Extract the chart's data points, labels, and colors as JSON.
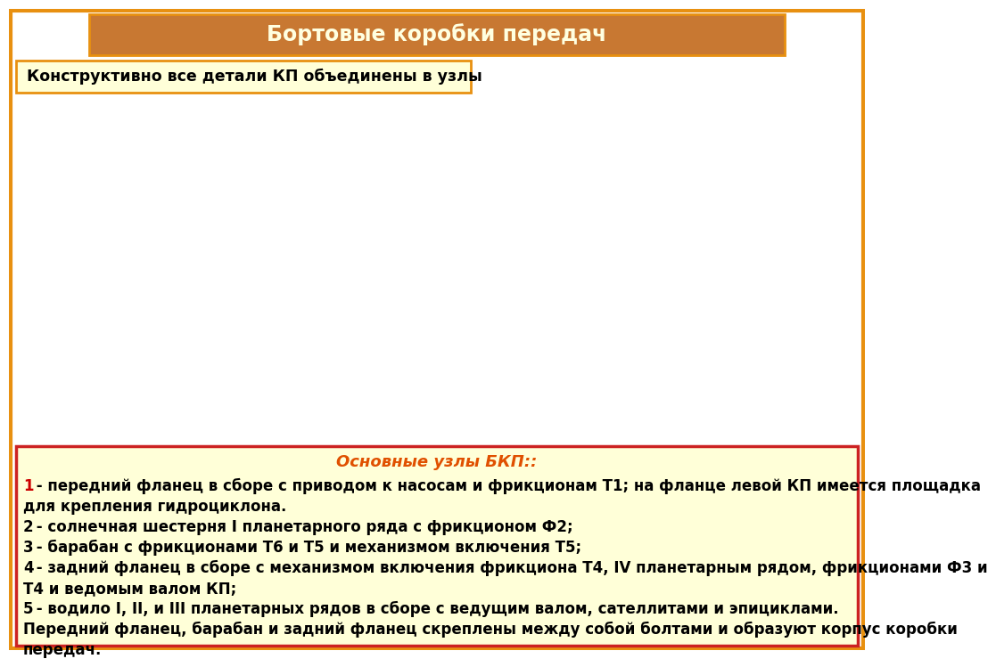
{
  "title": "Бортовые коробки передач",
  "title_bg": "#C87832",
  "title_border": "#E89010",
  "title_text_color": "#FFFFE0",
  "subtitle": "Конструктивно все детали КП объединены в узлы",
  "subtitle_bg": "#FFFFD8",
  "subtitle_border": "#E89010",
  "subtitle_text_color": "#000000",
  "bottom_bg": "#FFFFD8",
  "bottom_border": "#CC2222",
  "bottom_title": "Основные узлы БКП::",
  "bottom_title_color": "#E05000",
  "bg_color": "#FFFFFF",
  "outer_border_color": "#E89010",
  "bottom_lines": [
    {
      "num": "1",
      "num_color": "#CC0000",
      "text": " - передний фланец в сборе с приводом к насосам и фрикционам Т1; на фланце левой КП имеется площадка"
    },
    {
      "num": "",
      "num_color": "",
      "text": "для крепления гидроциклона."
    },
    {
      "num": "2",
      "num_color": "#000000",
      "text": " - солнечная шестерня I планетарного ряда с фрикционом Ф2;"
    },
    {
      "num": "3",
      "num_color": "#000000",
      "text": " - барабан с фрикционами Т6 и Т5 и механизмом включения Т5;"
    },
    {
      "num": "4",
      "num_color": "#000000",
      "text": " - задний фланец в сборе с механизмом включения фрикциона Т4, IV планетарным рядом, фрикционами Ф3 и"
    },
    {
      "num": "",
      "num_color": "",
      "text": "Т4 и ведомым валом КП;"
    },
    {
      "num": "5",
      "num_color": "#000000",
      "text": " - водило I, II, и III планетарных рядов в сборе с ведущим валом, сателлитами и эпициклами."
    },
    {
      "num": "",
      "num_color": "",
      "text": "Передний фланец, барабан и задний фланец скреплены между собой болтами и образуют корпус коробки"
    },
    {
      "num": "",
      "num_color": "",
      "text": "передач."
    }
  ]
}
